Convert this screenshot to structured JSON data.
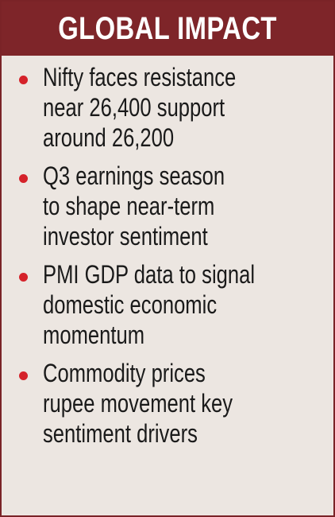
{
  "header": {
    "title": "GLOBAL IMPACT"
  },
  "items": [
    {
      "lines": [
        "Nifty faces resistance",
        "near 26,400 support",
        "around 26,200"
      ]
    },
    {
      "lines": [
        "Q3 earnings season",
        "to shape near-term",
        "investor sentiment"
      ]
    },
    {
      "lines": [
        "PMI GDP data to signal",
        "domestic economic",
        "momentum"
      ]
    },
    {
      "lines": [
        "Commodity prices",
        "rupee movement key",
        "sentiment drivers"
      ]
    }
  ],
  "colors": {
    "header_bg": "#7e2529",
    "panel_bg": "#ece6e1",
    "bullet": "#d5222a",
    "text": "#1a1a1a"
  }
}
